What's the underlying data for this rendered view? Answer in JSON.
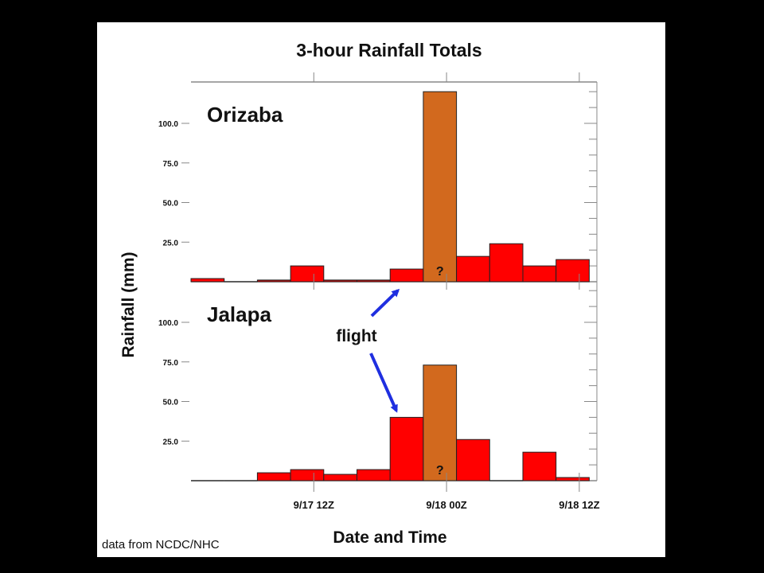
{
  "chart_data": {
    "type": "bar",
    "title": "3-hour Rainfall Totals",
    "xlabel": "Date and Time",
    "ylabel": "Rainfall (mm)",
    "x_tick_labels": [
      "9/17 12Z",
      "9/18 00Z",
      "9/18 12Z"
    ],
    "y_tick_labels": [
      "25.0",
      "50.0",
      "75.0",
      "100.0"
    ],
    "ylim": [
      0,
      125
    ],
    "grid": false,
    "colors": {
      "observed": "#ff0000",
      "uncertain": "#d2691e"
    },
    "panels": [
      {
        "name": "Orizaba",
        "series": [
          {
            "values": [
              2,
              0,
              1,
              10,
              1,
              1,
              8,
              120,
              16,
              24,
              10,
              14
            ],
            "uncertain": [
              false,
              false,
              false,
              false,
              false,
              false,
              false,
              true,
              false,
              false,
              false,
              false
            ]
          }
        ]
      },
      {
        "name": "Jalapa",
        "series": [
          {
            "values": [
              0,
              0,
              5,
              7,
              4,
              7,
              40,
              73,
              26,
              0,
              18,
              2
            ],
            "uncertain": [
              false,
              false,
              false,
              false,
              false,
              false,
              false,
              true,
              false,
              false,
              false,
              false
            ]
          }
        ]
      }
    ],
    "annotations": {
      "flight": "flight",
      "uncertain_marker": "?"
    },
    "source": "data from NCDC/NHC"
  }
}
